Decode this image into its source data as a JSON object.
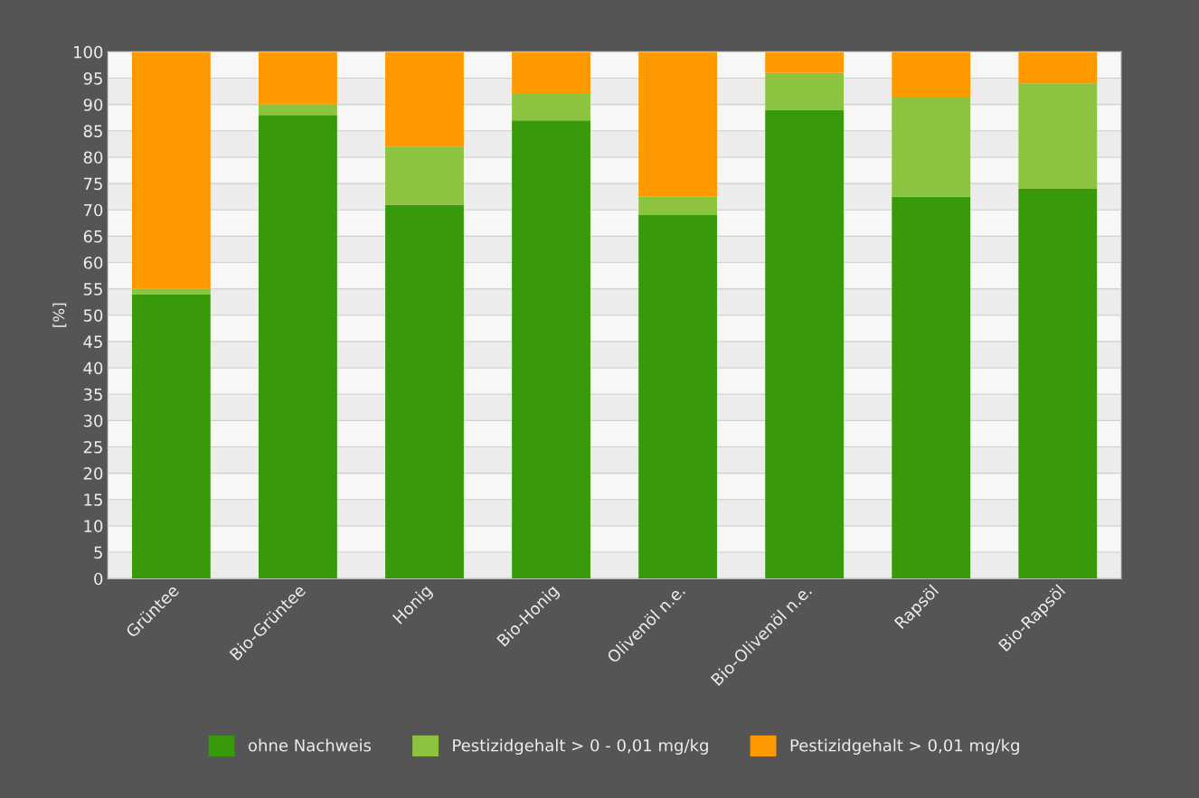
{
  "chart_data": {
    "type": "bar",
    "stacked": true,
    "ylabel": "[%]",
    "categories": [
      "Grüntee",
      "Bio-Grüntee",
      "Honig",
      "Bio-Honig",
      "Olivenöl n.e.",
      "Bio-Olivenöl n.e.",
      "Rapsöl",
      "Bio-Rapsöl"
    ],
    "series": [
      {
        "name": "ohne Nachweis",
        "color": "#38990a",
        "values": [
          54,
          88,
          71,
          87,
          69,
          89,
          72.5,
          74
        ]
      },
      {
        "name": "Pestizidgehalt > 0 - 0,01 mg/kg",
        "color": "#8cc43f",
        "values": [
          1,
          2,
          11,
          5,
          3.5,
          7,
          19,
          20
        ]
      },
      {
        "name": "Pestizidgehalt > 0,01 mg/kg",
        "color": "#ff9900",
        "values": [
          45,
          10,
          18,
          8,
          27.5,
          4,
          8.5,
          6
        ]
      }
    ],
    "ylim": [
      0,
      100
    ],
    "yticks": [
      0,
      5,
      10,
      15,
      20,
      25,
      30,
      35,
      40,
      45,
      50,
      55,
      60,
      65,
      70,
      75,
      80,
      85,
      90,
      95,
      100
    ],
    "grid": "y",
    "legend": "bottom"
  }
}
